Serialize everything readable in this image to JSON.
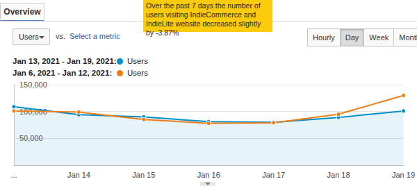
{
  "chart_data": {
    "type": "line",
    "categories": [
      "...",
      "Jan 14",
      "Jan 15",
      "Jan 16",
      "Jan 17",
      "Jan 18",
      "Jan 19"
    ],
    "series": [
      {
        "name": "Users",
        "label": "Jan 13, 2021 - Jan 19, 2021:",
        "color": "#058dc7",
        "marker": "circle",
        "values": [
          109000,
          94000,
          90000,
          81000,
          80000,
          89000,
          101000
        ]
      },
      {
        "name": "Users",
        "label": "Jan 6, 2021 - Jan 12, 2021:",
        "color": "#ed7e17",
        "marker": "circle",
        "values": [
          101000,
          99000,
          85000,
          78000,
          79000,
          95000,
          130000
        ]
      }
    ],
    "ylim": [
      0,
      150000
    ],
    "yticks": [
      {
        "value": 50000,
        "label": "50,000"
      },
      {
        "value": 100000,
        "label": "100,000"
      },
      {
        "value": 150000,
        "label": "150,000"
      }
    ],
    "grid": true,
    "annotation": "Over the past 7 days the number of users visiting IndieCommerce and IndieLite website decreased slightly by -3.87%"
  },
  "ui": {
    "tab": "Overview",
    "metric": "Users",
    "vs": "vs.",
    "select_metric": "Select a metric",
    "granularity": [
      "Hourly",
      "Day",
      "Week",
      "Month"
    ],
    "selected": "Day"
  }
}
